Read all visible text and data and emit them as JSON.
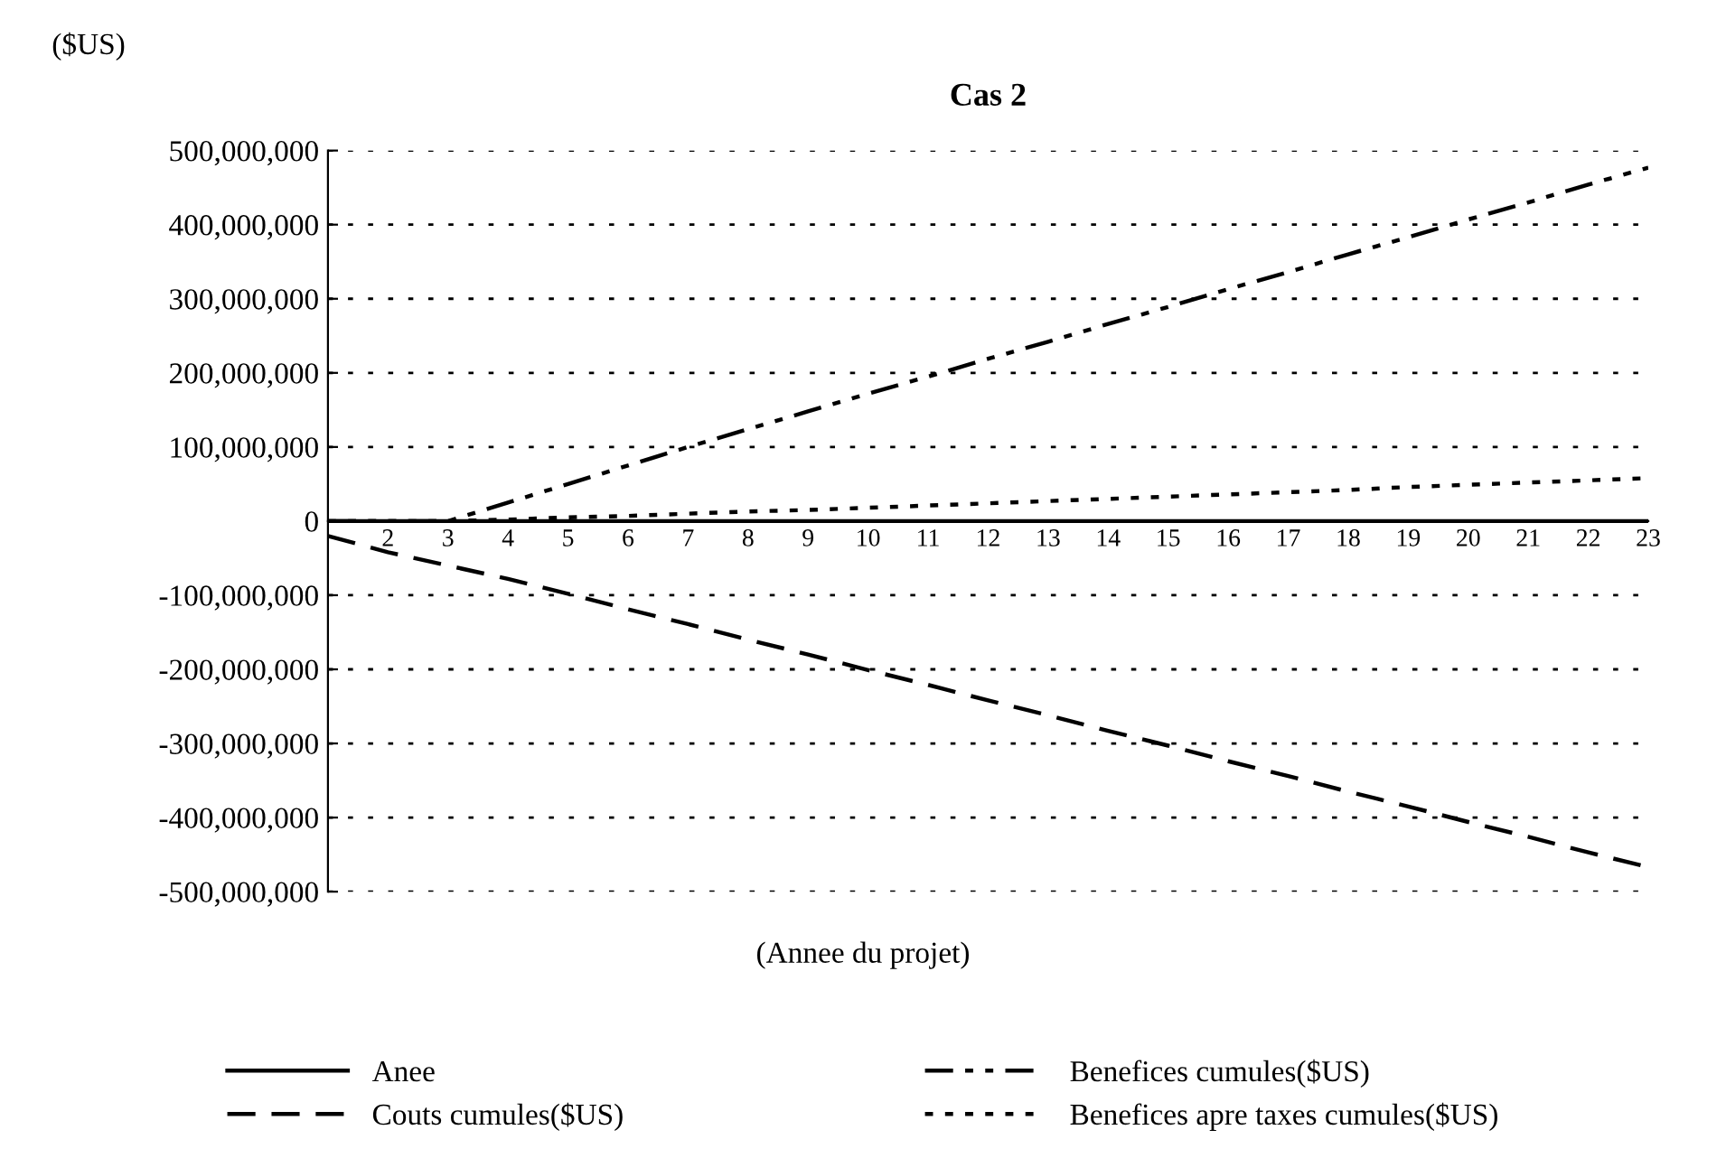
{
  "chart_data": {
    "type": "line",
    "title": "Cas 2",
    "xlabel": "(Annee du projet)",
    "ylabel": "($US)",
    "categories": [
      null,
      "2",
      "3",
      "4",
      "5",
      "6",
      "7",
      "8",
      "9",
      "10",
      "11",
      "12",
      "13",
      "14",
      "15",
      "16",
      "17",
      "18",
      "19",
      "20",
      "21",
      "22",
      "23"
    ],
    "series": [
      {
        "name": "Anee",
        "color": "#000000",
        "line_style": "solid",
        "values": [
          1,
          2,
          3,
          4,
          5,
          6,
          7,
          8,
          9,
          10,
          11,
          12,
          13,
          14,
          15,
          16,
          17,
          18,
          19,
          20,
          21,
          22,
          23
        ]
      },
      {
        "name": "Couts cumules($US)",
        "color": "#000000",
        "line_style": "dashed",
        "values": [
          -20000000,
          -42000000,
          -60000000,
          -78000000,
          -98000000,
          -119000000,
          -139000000,
          -160000000,
          -180000000,
          -201000000,
          -221000000,
          -242000000,
          -262000000,
          -283000000,
          -303000000,
          -324000000,
          -344000000,
          -365000000,
          -385000000,
          -406000000,
          -426000000,
          -447000000,
          -467000000
        ]
      },
      {
        "name": "Benefices cumules($US)",
        "color": "#000000",
        "line_style": "dashdot",
        "values": [
          0,
          0,
          0,
          25000000,
          50000000,
          75000000,
          100000000,
          124000000,
          148000000,
          172000000,
          195000000,
          219000000,
          242000000,
          266000000,
          289000000,
          313000000,
          336000000,
          360000000,
          383000000,
          407000000,
          430000000,
          454000000,
          477000000
        ]
      },
      {
        "name": "Benefices apre taxes cumules($US)",
        "color": "#000000",
        "line_style": "dotted",
        "values": [
          0,
          0,
          0,
          2000000,
          5000000,
          7000000,
          10000000,
          13000000,
          15000000,
          18000000,
          21000000,
          24000000,
          27000000,
          30000000,
          33000000,
          36000000,
          39000000,
          42000000,
          46000000,
          49000000,
          52000000,
          55000000,
          58000000
        ]
      }
    ],
    "ylim": [
      -500000000,
      500000000
    ],
    "yticks": [
      {
        "value": 500000000,
        "label": "500,000,000"
      },
      {
        "value": 400000000,
        "label": "400,000,000"
      },
      {
        "value": 300000000,
        "label": "300,000,000"
      },
      {
        "value": 200000000,
        "label": "200,000,000"
      },
      {
        "value": 100000000,
        "label": "100,000,000"
      },
      0,
      {
        "value": -100000000,
        "label": "-100,000,000"
      },
      {
        "value": -200000000,
        "label": "-200,000,000"
      },
      {
        "value": -300000000,
        "label": "-300,000,000"
      },
      {
        "value": -400000000,
        "label": "-400,000,000"
      },
      {
        "value": -500000000,
        "label": "-500,000,000"
      }
    ],
    "grid": "y",
    "legend": "bottom"
  }
}
